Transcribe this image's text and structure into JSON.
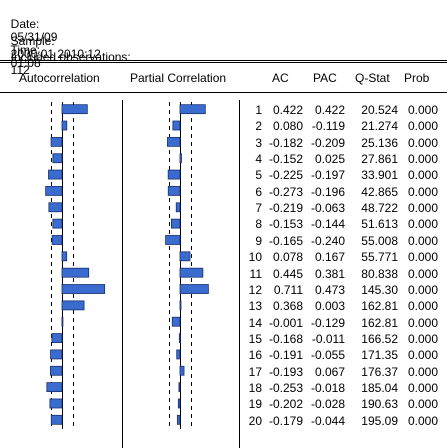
{
  "header": {
    "date_label": "Date:",
    "date": "05/31/09",
    "time_label": "Time:",
    "time": "01:08",
    "sample_label": "Sample:",
    "sample": "2000:01 2010:12",
    "obs_label": "Included observations:",
    "obs": "112"
  },
  "columns": {
    "autocorrelation": "Autocorrelation",
    "partial_correlation": "Partial Correlation",
    "ac": "AC",
    "pac": "PAC",
    "qstat": "Q-Stat",
    "prob": "Prob"
  },
  "colors": {
    "bar": "#3a6ccf",
    "bar_border": "#1a2f70"
  },
  "chart_data": {
    "type": "table",
    "rows": [
      {
        "lag": "1",
        "ac": "0.422",
        "pac": "0.422",
        "q": "20.524",
        "prob": "0.000"
      },
      {
        "lag": "2",
        "ac": "0.080",
        "pac": "-0.119",
        "q": "21.274",
        "prob": "0.000"
      },
      {
        "lag": "3",
        "ac": "-0.182",
        "pac": "-0.209",
        "q": "25.136",
        "prob": "0.000"
      },
      {
        "lag": "4",
        "ac": "-0.152",
        "pac": "0.025",
        "q": "27.861",
        "prob": "0.000"
      },
      {
        "lag": "5",
        "ac": "-0.225",
        "pac": "-0.197",
        "q": "33.901",
        "prob": "0.000"
      },
      {
        "lag": "6",
        "ac": "-0.273",
        "pac": "-0.196",
        "q": "42.865",
        "prob": "0.000"
      },
      {
        "lag": "7",
        "ac": "-0.219",
        "pac": "-0.063",
        "q": "48.722",
        "prob": "0.000"
      },
      {
        "lag": "8",
        "ac": "-0.153",
        "pac": "-0.144",
        "q": "51.613",
        "prob": "0.000"
      },
      {
        "lag": "9",
        "ac": "-0.165",
        "pac": "-0.240",
        "q": "55.008",
        "prob": "0.000"
      },
      {
        "lag": "10",
        "ac": "0.078",
        "pac": "0.167",
        "q": "55.771",
        "prob": "0.000"
      },
      {
        "lag": "11",
        "ac": "0.445",
        "pac": "0.381",
        "q": "80.838",
        "prob": "0.000"
      },
      {
        "lag": "12",
        "ac": "0.711",
        "pac": "0.473",
        "q": "145.30",
        "prob": "0.000"
      },
      {
        "lag": "13",
        "ac": "0.368",
        "pac": "0.003",
        "q": "162.81",
        "prob": "0.000"
      },
      {
        "lag": "14",
        "ac": "-0.001",
        "pac": "-0.129",
        "q": "162.81",
        "prob": "0.000"
      },
      {
        "lag": "15",
        "ac": "-0.168",
        "pac": "-0.011",
        "q": "166.52",
        "prob": "0.000"
      },
      {
        "lag": "16",
        "ac": "-0.191",
        "pac": "-0.055",
        "q": "171.35",
        "prob": "0.000"
      },
      {
        "lag": "17",
        "ac": "-0.193",
        "pac": "0.067",
        "q": "176.37",
        "prob": "0.000"
      },
      {
        "lag": "18",
        "ac": "-0.253",
        "pac": "-0.018",
        "q": "185.04",
        "prob": "0.000"
      },
      {
        "lag": "19",
        "ac": "-0.202",
        "pac": "-0.028",
        "q": "190.63",
        "prob": "0.000"
      },
      {
        "lag": "20",
        "ac": "-0.179",
        "pac": "-0.044",
        "q": "195.09",
        "prob": "0.000"
      }
    ]
  }
}
